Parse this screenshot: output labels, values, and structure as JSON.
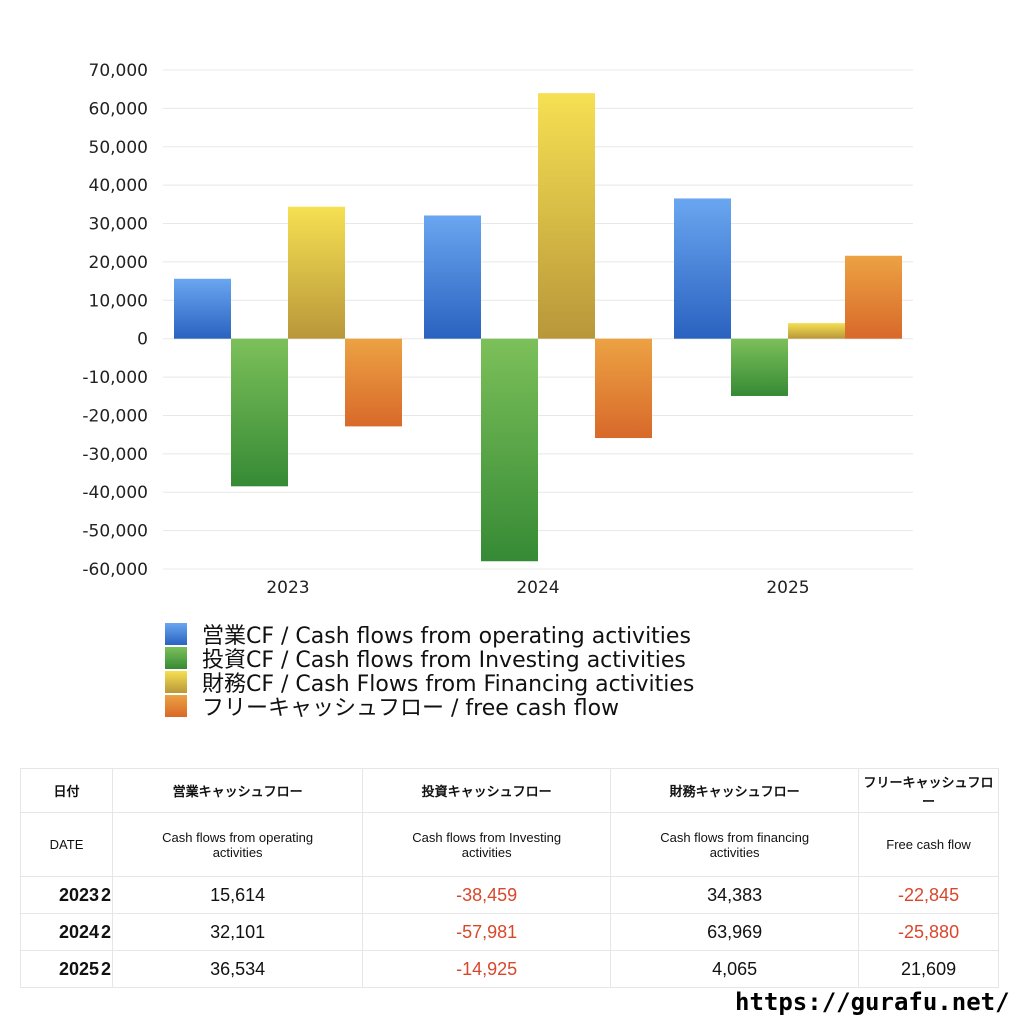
{
  "chart_data": {
    "type": "bar",
    "categories": [
      "2023",
      "2024",
      "2025"
    ],
    "ylim": [
      -60000,
      70000
    ],
    "yticks": [
      70000,
      60000,
      50000,
      40000,
      30000,
      20000,
      10000,
      0,
      -10000,
      -20000,
      -30000,
      -40000,
      -50000,
      -60000
    ],
    "ytick_labels": [
      "70,000",
      "60,000",
      "50,000",
      "40,000",
      "30,000",
      "20,000",
      "10,000",
      "0",
      "-10,000",
      "-20,000",
      "-30,000",
      "-40,000",
      "-50,000",
      "-60,000"
    ],
    "grid": true,
    "legend_placement": "bottom",
    "series": [
      {
        "name": "営業CF / Cash flows from operating activities",
        "values": [
          15614,
          32101,
          36534
        ],
        "colors": [
          "#6aa6f0",
          "#2a62c0"
        ]
      },
      {
        "name": "投資CF / Cash flows from Investing activities",
        "values": [
          -38459,
          -57981,
          -14925
        ],
        "colors": [
          "#7cc05a",
          "#368a35"
        ]
      },
      {
        "name": "財務CF / Cash Flows from Financing activities",
        "values": [
          34383,
          63969,
          4065
        ],
        "colors": [
          "#f6e052",
          "#b8973a"
        ]
      },
      {
        "name": "フリーキャッシュフロー / free cash flow",
        "values": [
          -22845,
          -25880,
          21609
        ],
        "colors": [
          "#eca243",
          "#d8692a"
        ]
      }
    ]
  },
  "table": {
    "headers_ja": [
      "日付",
      "営業キャッシュフロー",
      "投資キャッシュフロー",
      "財務キャッシュフロー",
      "フリーキャッシュフロー"
    ],
    "headers_en": [
      "DATE",
      "Cash flows from operating activities",
      "Cash flows from Investing activities",
      "Cash flows from financing activities",
      "Free cash flow"
    ],
    "rows": [
      {
        "year": "2023",
        "q": "2",
        "v": [
          "15,614",
          "-38,459",
          "34,383",
          "-22,845"
        ]
      },
      {
        "year": "2024",
        "q": "2",
        "v": [
          "32,101",
          "-57,981",
          "63,969",
          "-25,880"
        ]
      },
      {
        "year": "2025",
        "q": "2",
        "v": [
          "36,534",
          "-14,925",
          "4,065",
          "21,609"
        ]
      }
    ]
  },
  "watermark": "https://gurafu.net/"
}
